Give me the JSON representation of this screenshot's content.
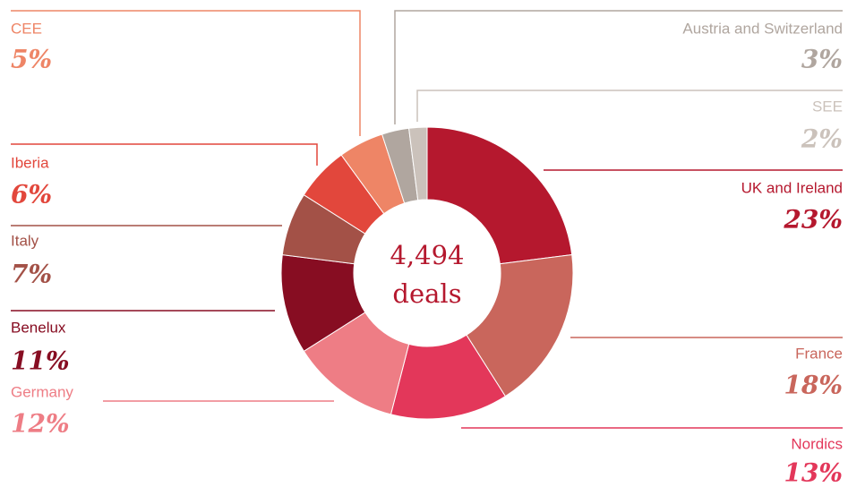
{
  "chart_data": {
    "type": "donut",
    "categories": [
      "UK and Ireland",
      "France",
      "Nordics",
      "Germany",
      "Benelux",
      "Italy",
      "Iberia",
      "CEE",
      "Austria and Switzerland",
      "SEE"
    ],
    "values": [
      23,
      18,
      13,
      12,
      11,
      7,
      6,
      5,
      3,
      2
    ],
    "value_labels": [
      "23%",
      "18%",
      "13%",
      "12%",
      "11%",
      "7%",
      "6%",
      "5%",
      "3%",
      "2%"
    ],
    "colors": [
      "#b5182e",
      "#c9665c",
      "#e3375a",
      "#ee7d85",
      "#870d22",
      "#a35147",
      "#e2473c",
      "#ee8566",
      "#b0a69f",
      "#cbc2bb"
    ],
    "total": {
      "value": 4494,
      "label": "4,494"
    },
    "total_unit": "deals"
  }
}
